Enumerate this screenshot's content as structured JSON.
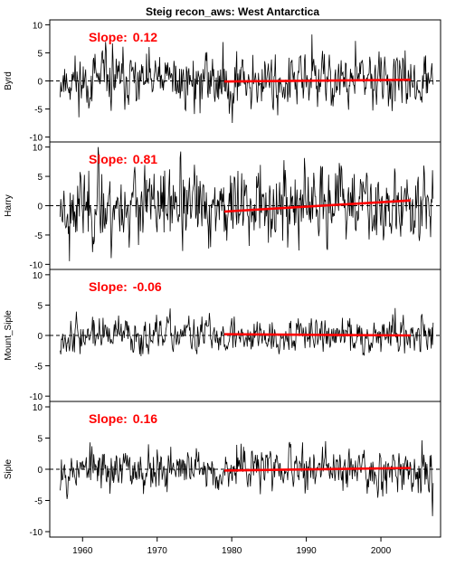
{
  "chart_data": {
    "type": "line",
    "title": "Steig recon_aws: West Antarctica",
    "xlabel": "",
    "xlim": [
      1955.6,
      2008.0
    ],
    "x_ticks": [
      1960,
      1970,
      1980,
      1990,
      2000
    ],
    "x_range": [
      1957.0,
      2007.0
    ],
    "trend_range": [
      1979.0,
      2004.0
    ],
    "grid": false,
    "zero_line": "dashed",
    "colors": {
      "series": "#000000",
      "trend": "#ff0000",
      "slope_text": "#ff0000"
    },
    "panels": [
      {
        "name": "Byrd",
        "slope_label": "Slope:",
        "slope_value": "0.12",
        "ylim": [
          -10,
          10
        ],
        "y_ticks": [
          -10,
          -5,
          0,
          5,
          10
        ],
        "trend": [
          [
            1979.0,
            -0.1
          ],
          [
            2004.0,
            0.2
          ]
        ],
        "amplitude": 3.4,
        "seed": 11
      },
      {
        "name": "Harry",
        "slope_label": "Slope:",
        "slope_value": "0.81",
        "ylim": [
          -10,
          10
        ],
        "y_ticks": [
          -10,
          -5,
          0,
          5,
          10
        ],
        "trend": [
          [
            1979.0,
            -1.0
          ],
          [
            2004.0,
            0.9
          ]
        ],
        "amplitude": 4.4,
        "seed": 23
      },
      {
        "name": "Mount_Siple",
        "slope_label": "Slope:",
        "slope_value": "-0.06",
        "ylim": [
          -10,
          10
        ],
        "y_ticks": [
          -10,
          -5,
          0,
          5,
          10
        ],
        "trend": [
          [
            1979.0,
            0.2
          ],
          [
            2004.0,
            0.0
          ]
        ],
        "amplitude": 2.0,
        "seed": 37
      },
      {
        "name": "Siple",
        "slope_label": "Slope:",
        "slope_value": "0.16",
        "ylim": [
          -10,
          10
        ],
        "y_ticks": [
          -10,
          -5,
          0,
          5,
          10
        ],
        "trend": [
          [
            1979.0,
            -0.2
          ],
          [
            2004.0,
            0.2
          ]
        ],
        "amplitude": 2.4,
        "seed": 53
      }
    ]
  }
}
